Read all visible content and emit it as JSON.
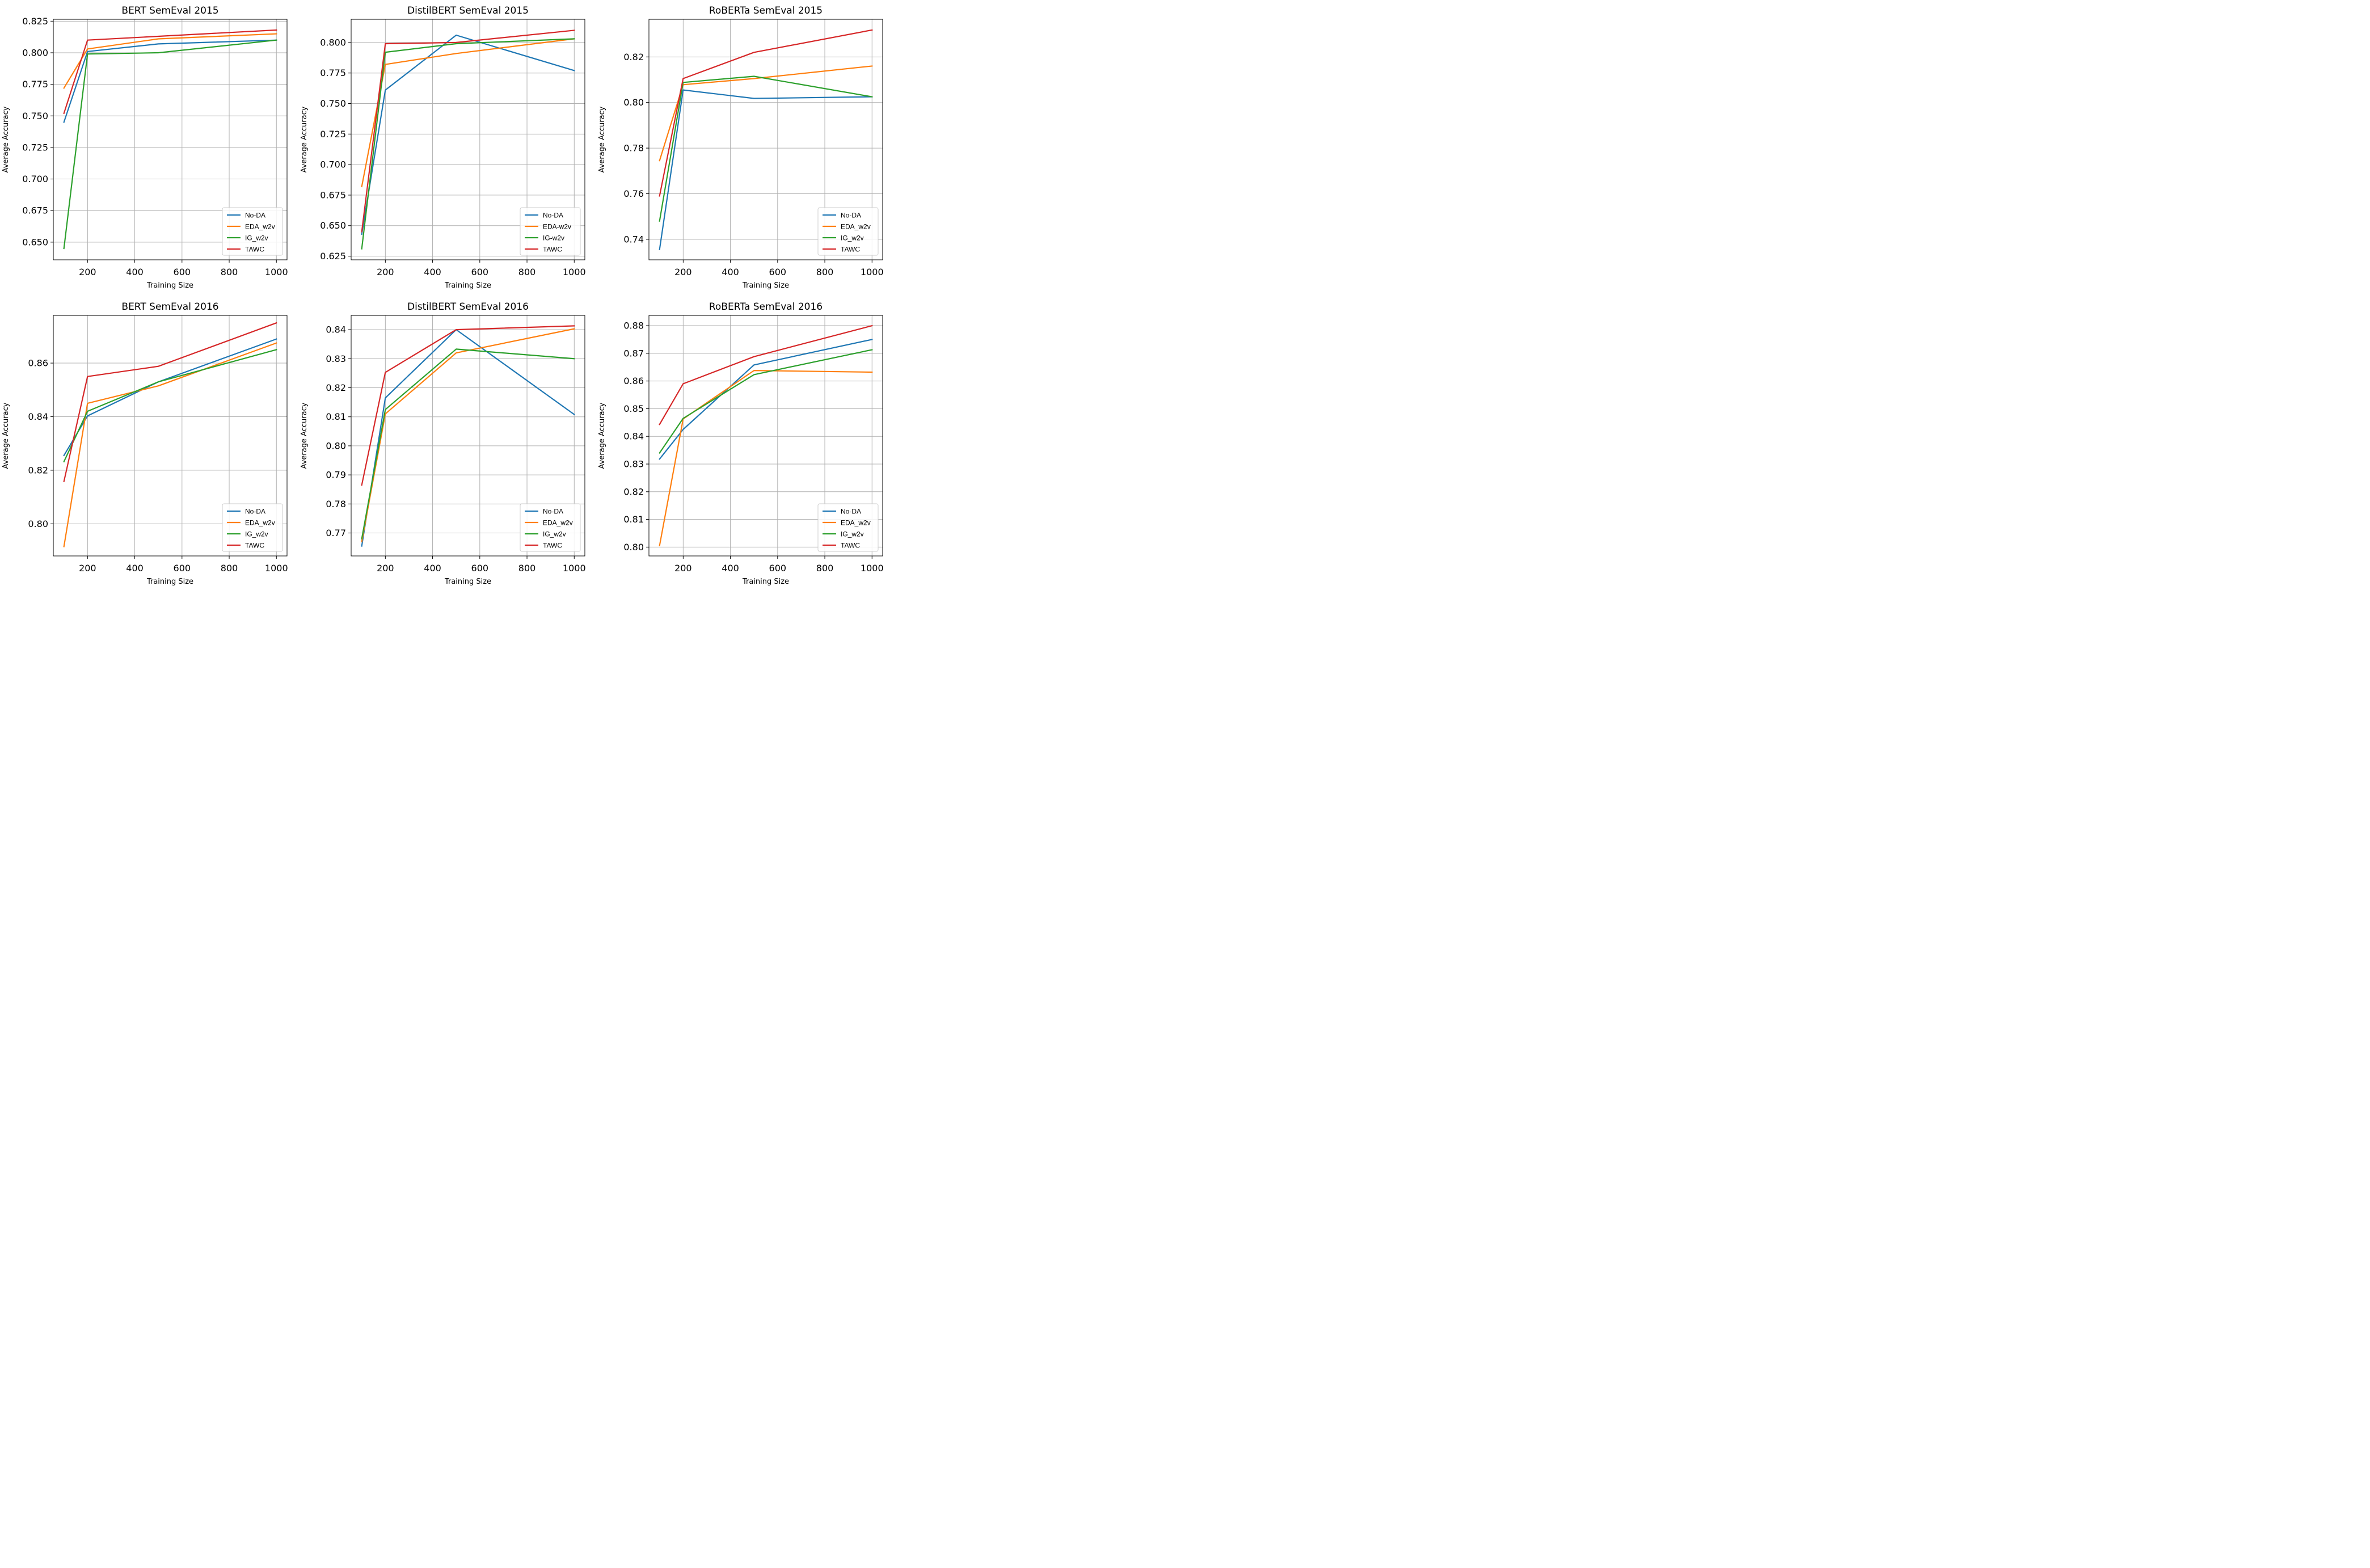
{
  "colors": {
    "No-DA": "#1f77b4",
    "EDA": "#ff7f0e",
    "IG": "#2ca02c",
    "TAWC": "#d62728"
  },
  "chart_data": [
    {
      "type": "line",
      "title": "BERT SemEval 2015",
      "xlabel": "Training Size",
      "ylabel": "Average Accuracy",
      "x": [
        100,
        200,
        500,
        1000
      ],
      "xticks": [
        200,
        400,
        600,
        800,
        1000
      ],
      "xlim": [
        55,
        1045
      ],
      "yticks": [
        0.65,
        0.675,
        0.7,
        0.725,
        0.75,
        0.775,
        0.8,
        0.825
      ],
      "ytick_labels": [
        "0.650",
        "0.675",
        "0.700",
        "0.725",
        "0.750",
        "0.775",
        "0.800",
        "0.825"
      ],
      "ylim": [
        0.636,
        0.8265
      ],
      "legend": "bottom-right",
      "series": [
        {
          "name": "No-DA",
          "color_key": "No-DA",
          "values": [
            0.745,
            0.801,
            0.807,
            0.81
          ]
        },
        {
          "name": "EDA_w2v",
          "color_key": "EDA",
          "values": [
            0.772,
            0.803,
            0.811,
            0.815
          ]
        },
        {
          "name": "IG_w2v",
          "color_key": "IG",
          "values": [
            0.645,
            0.799,
            0.8,
            0.81
          ]
        },
        {
          "name": "TAWC",
          "color_key": "TAWC",
          "values": [
            0.752,
            0.81,
            0.813,
            0.818
          ]
        }
      ]
    },
    {
      "type": "line",
      "title": "DistilBERT SemEval 2015",
      "xlabel": "Training Size",
      "ylabel": "Average Accuracy",
      "x": [
        100,
        200,
        500,
        1000
      ],
      "xticks": [
        200,
        400,
        600,
        800,
        1000
      ],
      "xlim": [
        55,
        1045
      ],
      "yticks": [
        0.625,
        0.65,
        0.675,
        0.7,
        0.725,
        0.75,
        0.775,
        0.8
      ],
      "ytick_labels": [
        "0.625",
        "0.650",
        "0.675",
        "0.700",
        "0.725",
        "0.750",
        "0.775",
        "0.800"
      ],
      "ylim": [
        0.622,
        0.819
      ],
      "legend": "bottom-right",
      "series": [
        {
          "name": "No-DA",
          "color_key": "No-DA",
          "values": [
            0.643,
            0.761,
            0.806,
            0.777
          ]
        },
        {
          "name": "EDA-w2v",
          "color_key": "EDA",
          "values": [
            0.682,
            0.782,
            0.791,
            0.803
          ]
        },
        {
          "name": "IG-w2v",
          "color_key": "IG",
          "values": [
            0.631,
            0.792,
            0.799,
            0.803
          ]
        },
        {
          "name": "TAWC",
          "color_key": "TAWC",
          "values": [
            0.645,
            0.799,
            0.8,
            0.81
          ]
        }
      ]
    },
    {
      "type": "line",
      "title": "RoBERTa SemEval 2015",
      "xlabel": "Training Size",
      "ylabel": "Average Accuracy",
      "x": [
        100,
        200,
        500,
        1000
      ],
      "xticks": [
        200,
        400,
        600,
        800,
        1000
      ],
      "xlim": [
        55,
        1045
      ],
      "yticks": [
        0.74,
        0.76,
        0.78,
        0.8,
        0.82
      ],
      "ytick_labels": [
        "0.74",
        "0.76",
        "0.78",
        "0.80",
        "0.82"
      ],
      "ylim": [
        0.731,
        0.8365
      ],
      "legend": "bottom-right",
      "series": [
        {
          "name": "No-DA",
          "color_key": "No-DA",
          "values": [
            0.7355,
            0.8055,
            0.8018,
            0.8025
          ]
        },
        {
          "name": "EDA_w2v",
          "color_key": "EDA",
          "values": [
            0.7745,
            0.8078,
            0.8105,
            0.816
          ]
        },
        {
          "name": "IG_w2v",
          "color_key": "IG",
          "values": [
            0.748,
            0.8088,
            0.8115,
            0.8025
          ]
        },
        {
          "name": "TAWC",
          "color_key": "TAWC",
          "values": [
            0.759,
            0.8105,
            0.822,
            0.8318
          ]
        }
      ]
    },
    {
      "type": "line",
      "title": "BERT SemEval 2016",
      "xlabel": "Training Size",
      "ylabel": "Average Accuracy",
      "x": [
        100,
        200,
        500,
        1000
      ],
      "xticks": [
        200,
        400,
        600,
        800,
        1000
      ],
      "xlim": [
        55,
        1045
      ],
      "yticks": [
        0.8,
        0.82,
        0.84,
        0.86
      ],
      "ytick_labels": [
        "0.80",
        "0.82",
        "0.84",
        "0.86"
      ],
      "ylim": [
        0.788,
        0.8778
      ],
      "legend": "bottom-right",
      "series": [
        {
          "name": "No-DA",
          "color_key": "No-DA",
          "values": [
            0.8255,
            0.8403,
            0.853,
            0.869
          ]
        },
        {
          "name": "EDA_w2v",
          "color_key": "EDA",
          "values": [
            0.7915,
            0.845,
            0.8515,
            0.8675
          ]
        },
        {
          "name": "IG_w2v",
          "color_key": "IG",
          "values": [
            0.8232,
            0.842,
            0.853,
            0.865
          ]
        },
        {
          "name": "TAWC",
          "color_key": "TAWC",
          "values": [
            0.8158,
            0.855,
            0.8588,
            0.875
          ]
        }
      ]
    },
    {
      "type": "line",
      "title": "DistilBERT SemEval 2016",
      "xlabel": "Training Size",
      "ylabel": "Average Accuracy",
      "x": [
        100,
        200,
        500,
        1000
      ],
      "xticks": [
        200,
        400,
        600,
        800,
        1000
      ],
      "xlim": [
        55,
        1045
      ],
      "yticks": [
        0.77,
        0.78,
        0.79,
        0.8,
        0.81,
        0.82,
        0.83,
        0.84
      ],
      "ytick_labels": [
        "0.77",
        "0.78",
        "0.79",
        "0.80",
        "0.81",
        "0.82",
        "0.83",
        "0.84"
      ],
      "ylim": [
        0.7621,
        0.8449
      ],
      "legend": "bottom-right",
      "series": [
        {
          "name": "No-DA",
          "color_key": "No-DA",
          "values": [
            0.7655,
            0.8165,
            0.84,
            0.8108
          ]
        },
        {
          "name": "EDA_w2v",
          "color_key": "EDA",
          "values": [
            0.767,
            0.811,
            0.832,
            0.8403
          ]
        },
        {
          "name": "IG_w2v",
          "color_key": "IG",
          "values": [
            0.768,
            0.8125,
            0.8333,
            0.83
          ]
        },
        {
          "name": "TAWC",
          "color_key": "TAWC",
          "values": [
            0.7865,
            0.8253,
            0.84,
            0.8413
          ]
        }
      ]
    },
    {
      "type": "line",
      "title": "RoBERTa SemEval 2016",
      "xlabel": "Training Size",
      "ylabel": "Average Accuracy",
      "x": [
        100,
        200,
        500,
        1000
      ],
      "xticks": [
        200,
        400,
        600,
        800,
        1000
      ],
      "xlim": [
        55,
        1045
      ],
      "yticks": [
        0.8,
        0.81,
        0.82,
        0.83,
        0.84,
        0.85,
        0.86,
        0.87,
        0.88
      ],
      "ytick_labels": [
        "0.80",
        "0.81",
        "0.82",
        "0.83",
        "0.84",
        "0.85",
        "0.86",
        "0.87",
        "0.88"
      ],
      "ylim": [
        0.7968,
        0.8837
      ],
      "legend": "bottom-right",
      "series": [
        {
          "name": "No-DA",
          "color_key": "No-DA",
          "values": [
            0.8318,
            0.8425,
            0.8658,
            0.875
          ]
        },
        {
          "name": "EDA_w2v",
          "color_key": "EDA",
          "values": [
            0.8005,
            0.8463,
            0.8638,
            0.8632
          ]
        },
        {
          "name": "IG_w2v",
          "color_key": "IG",
          "values": [
            0.834,
            0.8465,
            0.8623,
            0.8713
          ]
        },
        {
          "name": "TAWC",
          "color_key": "TAWC",
          "values": [
            0.8443,
            0.859,
            0.8688,
            0.88
          ]
        }
      ]
    }
  ]
}
